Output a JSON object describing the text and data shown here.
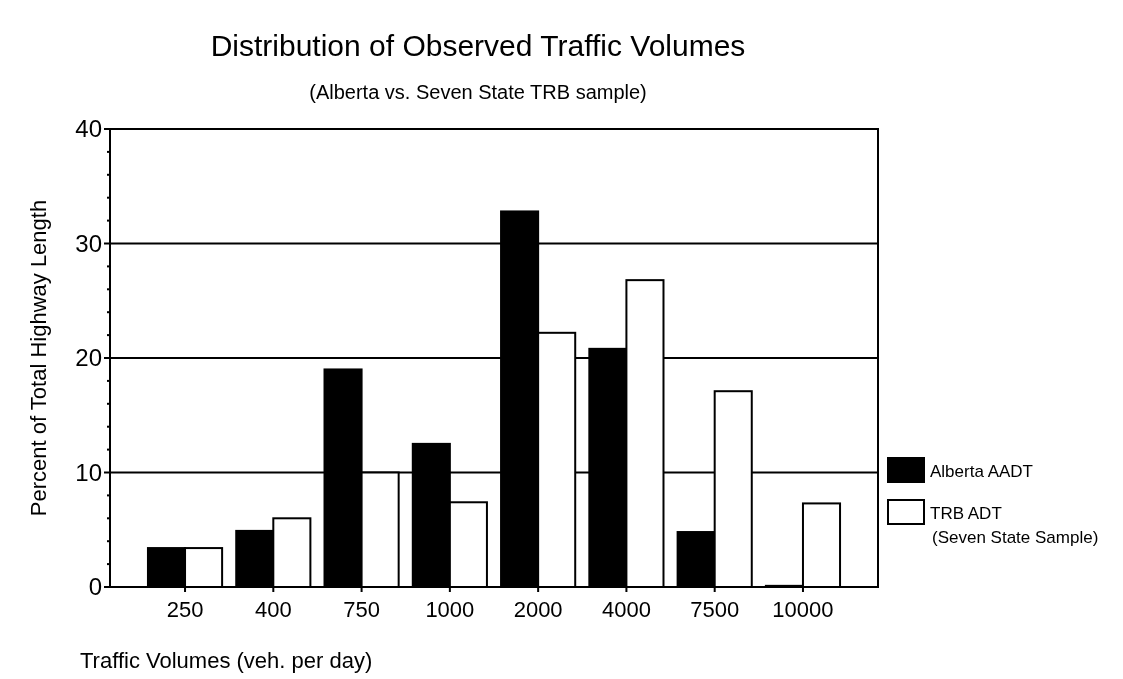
{
  "chart_data": {
    "type": "bar",
    "title": "Distribution of Observed Traffic Volumes",
    "subtitle": "(Alberta vs. Seven State TRB sample)",
    "xlabel": "Traffic Volumes (veh. per day)",
    "ylabel": "Percent of Total Highway Length",
    "categories": [
      "250",
      "400",
      "750",
      "1000",
      "2000",
      "4000",
      "7500",
      "10000"
    ],
    "series": [
      {
        "name": "Alberta AADT",
        "color": "#000000",
        "values": [
          3.4,
          4.9,
          19.0,
          12.5,
          32.8,
          20.8,
          4.8,
          0.1
        ]
      },
      {
        "name": "TRB ADT\n(Seven State Sample)",
        "color": "#ffffff",
        "values": [
          3.4,
          6.0,
          10.0,
          7.4,
          22.2,
          26.8,
          17.1,
          7.3
        ]
      }
    ],
    "ylim": [
      0,
      40
    ],
    "yticks": [
      0,
      {
        "value": 2,
        "label": null
      },
      {
        "value": 4,
        "label": null
      },
      {
        "value": 6,
        "label": null
      },
      {
        "value": 8,
        "label": null
      },
      10,
      {
        "value": 12,
        "label": null
      },
      {
        "value": 14,
        "label": null
      },
      {
        "value": 16,
        "label": null
      },
      {
        "value": 18,
        "label": null
      },
      20,
      {
        "value": 22,
        "label": null
      },
      {
        "value": 24,
        "label": null
      },
      {
        "value": 26,
        "label": null
      },
      {
        "value": 28,
        "label": null
      },
      30,
      {
        "value": 32,
        "label": null
      },
      {
        "value": 34,
        "label": null
      },
      {
        "value": 36,
        "label": null
      },
      {
        "value": 38,
        "label": null
      },
      40
    ],
    "grid": "y",
    "legend": "right"
  }
}
